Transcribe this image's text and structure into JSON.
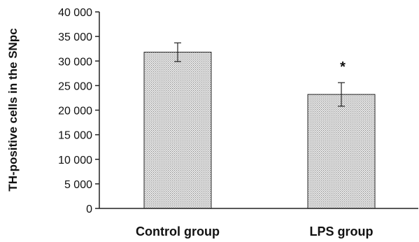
{
  "chart_data": {
    "type": "bar",
    "title": "",
    "xlabel": "",
    "ylabel": "TH-positive cells in the SNpc",
    "ylim": [
      0,
      40000
    ],
    "yticks": [
      0,
      5000,
      10000,
      15000,
      20000,
      25000,
      30000,
      35000,
      40000
    ],
    "ytick_labels": [
      "0",
      "5 000",
      "10 000",
      "15 000",
      "20 000",
      "25 000",
      "30 000",
      "35 000",
      "40 000"
    ],
    "categories": [
      "Control group",
      "LPS group"
    ],
    "values": [
      31800,
      23200
    ],
    "error": [
      1900,
      2400
    ],
    "annotations": [
      "",
      "*"
    ],
    "grid": false,
    "legend": "none",
    "colors": {
      "bar_fill": "#d9d9d9",
      "bar_stroke": "#222222",
      "axis": "#222222"
    }
  }
}
